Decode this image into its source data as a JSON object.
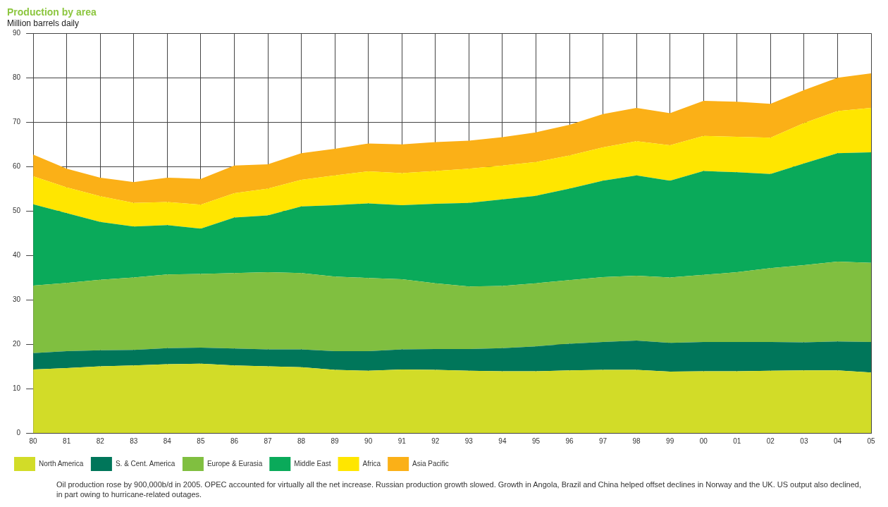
{
  "chart_data": {
    "type": "area",
    "title": "Production by area",
    "subtitle": "Million barrels daily",
    "categories": [
      "80",
      "81",
      "82",
      "83",
      "84",
      "85",
      "86",
      "87",
      "88",
      "89",
      "90",
      "91",
      "92",
      "93",
      "94",
      "95",
      "96",
      "97",
      "98",
      "99",
      "00",
      "01",
      "02",
      "03",
      "04",
      "05"
    ],
    "stacked": true,
    "ylim": [
      0,
      90
    ],
    "yticks": [
      0,
      10,
      20,
      30,
      40,
      50,
      60,
      70,
      80,
      90
    ],
    "grid": true,
    "legend": "bottom",
    "series": [
      {
        "name": "North America",
        "color": "#d2dc28",
        "values": [
          14.3,
          14.6,
          15.0,
          15.2,
          15.5,
          15.6,
          15.2,
          15.0,
          14.8,
          14.2,
          14.0,
          14.3,
          14.2,
          14.0,
          13.9,
          13.9,
          14.1,
          14.2,
          14.2,
          13.8,
          13.9,
          13.9,
          14.0,
          14.1,
          14.1,
          13.6
        ]
      },
      {
        "name": "S. & Cent. America",
        "color": "#00765a",
        "values": [
          3.7,
          3.8,
          3.6,
          3.5,
          3.6,
          3.6,
          3.8,
          3.8,
          4.0,
          4.2,
          4.4,
          4.5,
          4.7,
          4.9,
          5.2,
          5.6,
          6.0,
          6.3,
          6.6,
          6.5,
          6.6,
          6.6,
          6.5,
          6.3,
          6.5,
          6.9
        ]
      },
      {
        "name": "Europe & Eurasia",
        "color": "#80bf40",
        "values": [
          15.2,
          15.4,
          15.9,
          16.3,
          16.6,
          16.6,
          17.0,
          17.4,
          17.2,
          16.8,
          16.5,
          15.8,
          14.8,
          14.1,
          14.0,
          14.2,
          14.3,
          14.6,
          14.6,
          14.7,
          15.1,
          15.7,
          16.6,
          17.4,
          18.0,
          17.8
        ]
      },
      {
        "name": "Middle East",
        "color": "#0aaa5a",
        "values": [
          18.3,
          15.7,
          13.0,
          11.5,
          11.1,
          10.2,
          12.5,
          12.8,
          15.0,
          16.1,
          16.8,
          16.7,
          17.9,
          18.8,
          19.5,
          19.7,
          20.6,
          21.7,
          22.6,
          21.8,
          23.4,
          22.5,
          21.2,
          22.9,
          24.4,
          24.9
        ]
      },
      {
        "name": "Africa",
        "color": "#ffe600",
        "values": [
          6.3,
          5.8,
          5.8,
          5.3,
          5.2,
          5.4,
          5.5,
          6.0,
          6.0,
          6.7,
          7.2,
          7.2,
          7.4,
          7.7,
          7.6,
          7.6,
          7.5,
          7.5,
          7.7,
          8.0,
          7.9,
          8.0,
          8.2,
          9.1,
          9.5,
          10.0
        ]
      },
      {
        "name": "Asia Pacific",
        "color": "#fbb017",
        "values": [
          4.9,
          4.2,
          4.2,
          4.7,
          5.5,
          5.8,
          6.2,
          5.5,
          6.0,
          6.0,
          6.3,
          6.5,
          6.5,
          6.3,
          6.4,
          6.7,
          6.9,
          7.5,
          7.5,
          7.2,
          7.9,
          7.9,
          7.6,
          7.4,
          7.5,
          7.8
        ]
      }
    ],
    "annotations": [
      "Oil production rose by 900,000b/d in 2005. OPEC accounted for virtually all the net increase. Russian production growth slowed. Growth in Angola, Brazil and China helped offset declines in Norway and the UK. US output also declined, in part owing to hurricane-related outages."
    ]
  }
}
